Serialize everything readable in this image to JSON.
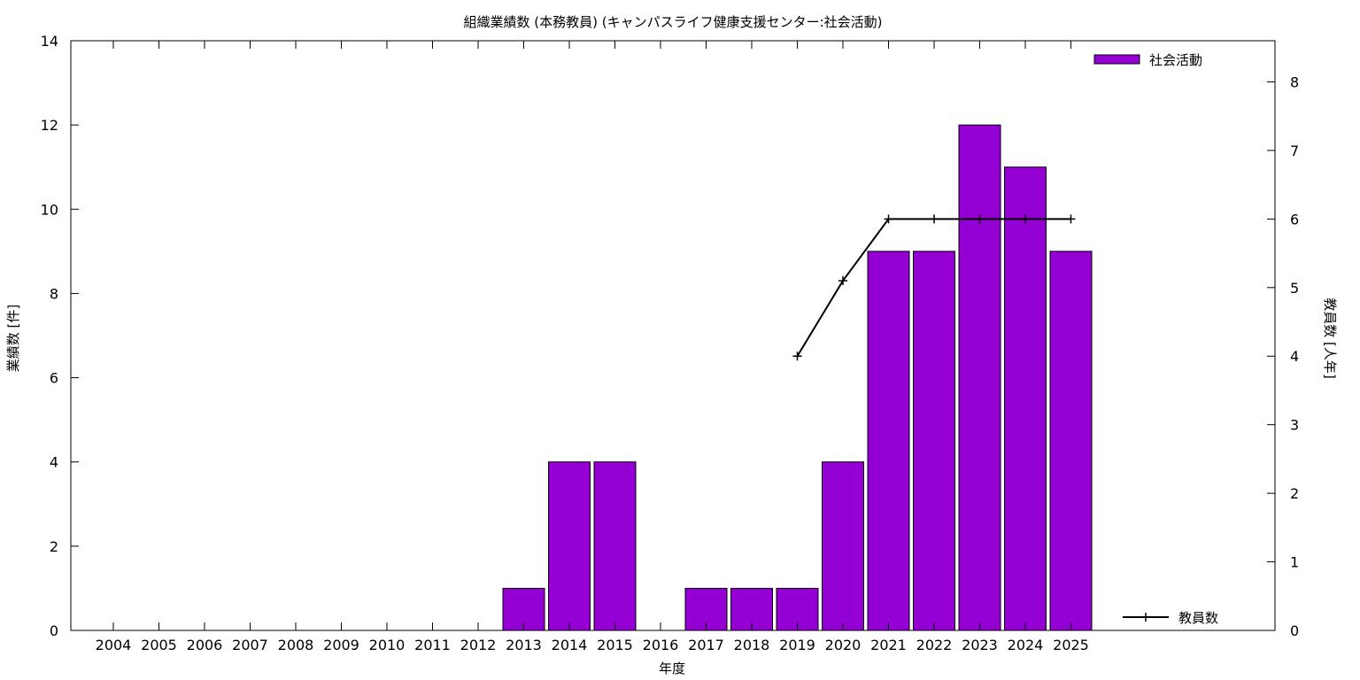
{
  "chart_data": {
    "type": "bar",
    "title": "組織業績数 (本務教員) (キャンパスライフ健康支援センター:社会活動)",
    "xlabel": "年度",
    "ylabel": "業績数 [件]",
    "y2label": "教員数 [人年]",
    "categories": [
      "2004",
      "2005",
      "2006",
      "2007",
      "2008",
      "2009",
      "2010",
      "2011",
      "2012",
      "2013",
      "2014",
      "2015",
      "2016",
      "2017",
      "2018",
      "2019",
      "2020",
      "2021",
      "2022",
      "2023",
      "2024",
      "2025"
    ],
    "ylim": [
      0,
      14
    ],
    "yticks": [
      0,
      2,
      4,
      6,
      8,
      10,
      12,
      14
    ],
    "y2lim": [
      0,
      8.6
    ],
    "y2ticks": [
      0,
      1,
      2,
      3,
      4,
      5,
      6,
      7,
      8
    ],
    "grid": false,
    "legend_placement": "right",
    "series": [
      {
        "name": "社会活動",
        "type": "bar",
        "axis": "y",
        "color": "#9400D3",
        "values": [
          0,
          0,
          0,
          0,
          0,
          0,
          0,
          0,
          0,
          1,
          4,
          4,
          0,
          1,
          1,
          1,
          4,
          9,
          9,
          12,
          11,
          9
        ]
      },
      {
        "name": "教員数",
        "type": "line",
        "axis": "y2",
        "color": "#000000",
        "values": [
          null,
          null,
          null,
          null,
          null,
          null,
          null,
          null,
          null,
          null,
          null,
          null,
          null,
          null,
          null,
          4,
          5.1,
          6,
          6,
          6,
          6,
          6
        ]
      }
    ]
  }
}
